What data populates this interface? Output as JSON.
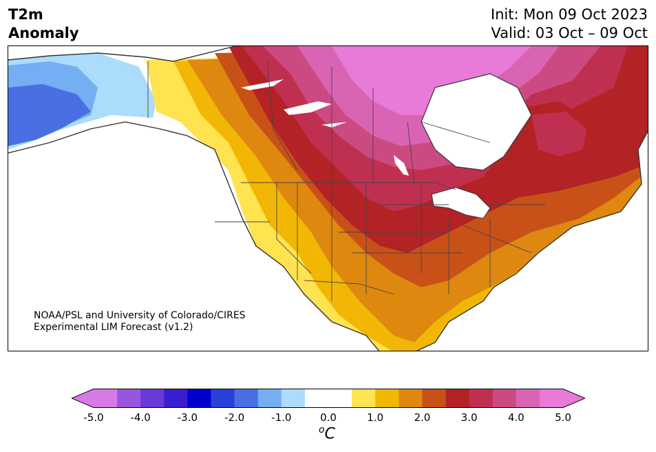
{
  "title": {
    "left_line1": "T2m",
    "left_line2": "Anomaly",
    "right_line1": "Init: Mon 09 Oct 2023",
    "right_line2": "Valid: 03 Oct – 09 Oct"
  },
  "credit": {
    "line1": "NOAA/PSL and University of Colorado/CIRES",
    "line2": "Experimental LIM Forecast (v1.2)"
  },
  "colorbar": {
    "ticks": [
      "-5.0",
      "-4.0",
      "-3.0",
      "-2.0",
      "-1.0",
      "0.0",
      "1.0",
      "2.0",
      "3.0",
      "4.0",
      "5.0"
    ],
    "unit_base": "C",
    "unit_sup": "o",
    "under_color": "#d77ae8",
    "over_color": "#e87ad8",
    "colors": [
      "#d77ae8",
      "#9a55e0",
      "#6a3ad8",
      "#3a1fd0",
      "#0000cd",
      "#2a40db",
      "#4a6fe3",
      "#75aef2",
      "#acdcfc",
      "#ffffff",
      "#ffffff",
      "#ffe350",
      "#f2b705",
      "#de8810",
      "#c85118",
      "#b32225",
      "#bf3050",
      "#cc4a82",
      "#da64b4",
      "#e87ad8"
    ]
  },
  "map": {
    "region": "North America",
    "variable": "2 m temperature anomaly"
  }
}
